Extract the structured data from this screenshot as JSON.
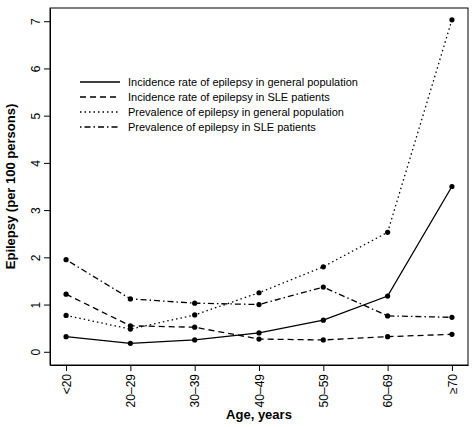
{
  "chart_data": {
    "type": "line",
    "x_label": "Age, years",
    "y_label": "Epilepsy (per 100 persons)",
    "categories": [
      "<20",
      "20–29",
      "30–39",
      "40–49",
      "50–59",
      "60–69",
      "≥70"
    ],
    "series": [
      {
        "name": "Incidence rate of epilepsy in general population",
        "color": "#000000",
        "line_style": "solid",
        "marker": "circle",
        "values": [
          0.32,
          0.18,
          0.25,
          0.4,
          0.67,
          1.18,
          3.5
        ]
      },
      {
        "name": "Incidence rate of epilepsy in SLE patients",
        "color": "#000000",
        "line_style": "dashed",
        "marker": "circle",
        "values": [
          1.22,
          0.55,
          0.52,
          0.27,
          0.25,
          0.32,
          0.37
        ]
      },
      {
        "name": "Prevalence of epilepsy in general population",
        "color": "#000000",
        "line_style": "dotted",
        "marker": "circle",
        "values": [
          0.77,
          0.48,
          0.78,
          1.25,
          1.8,
          2.53,
          7.03
        ]
      },
      {
        "name": "Prevalence of epilepsy in SLE patients",
        "color": "#000000",
        "line_style": "dashdot",
        "marker": "circle",
        "values": [
          1.95,
          1.12,
          1.03,
          1.0,
          1.37,
          0.76,
          0.73
        ]
      }
    ],
    "ylim": [
      -0.28,
      7.28
    ],
    "yticks": [
      0,
      1,
      2,
      3,
      4,
      5,
      6,
      7
    ],
    "grid": false,
    "legend": "top-left"
  }
}
